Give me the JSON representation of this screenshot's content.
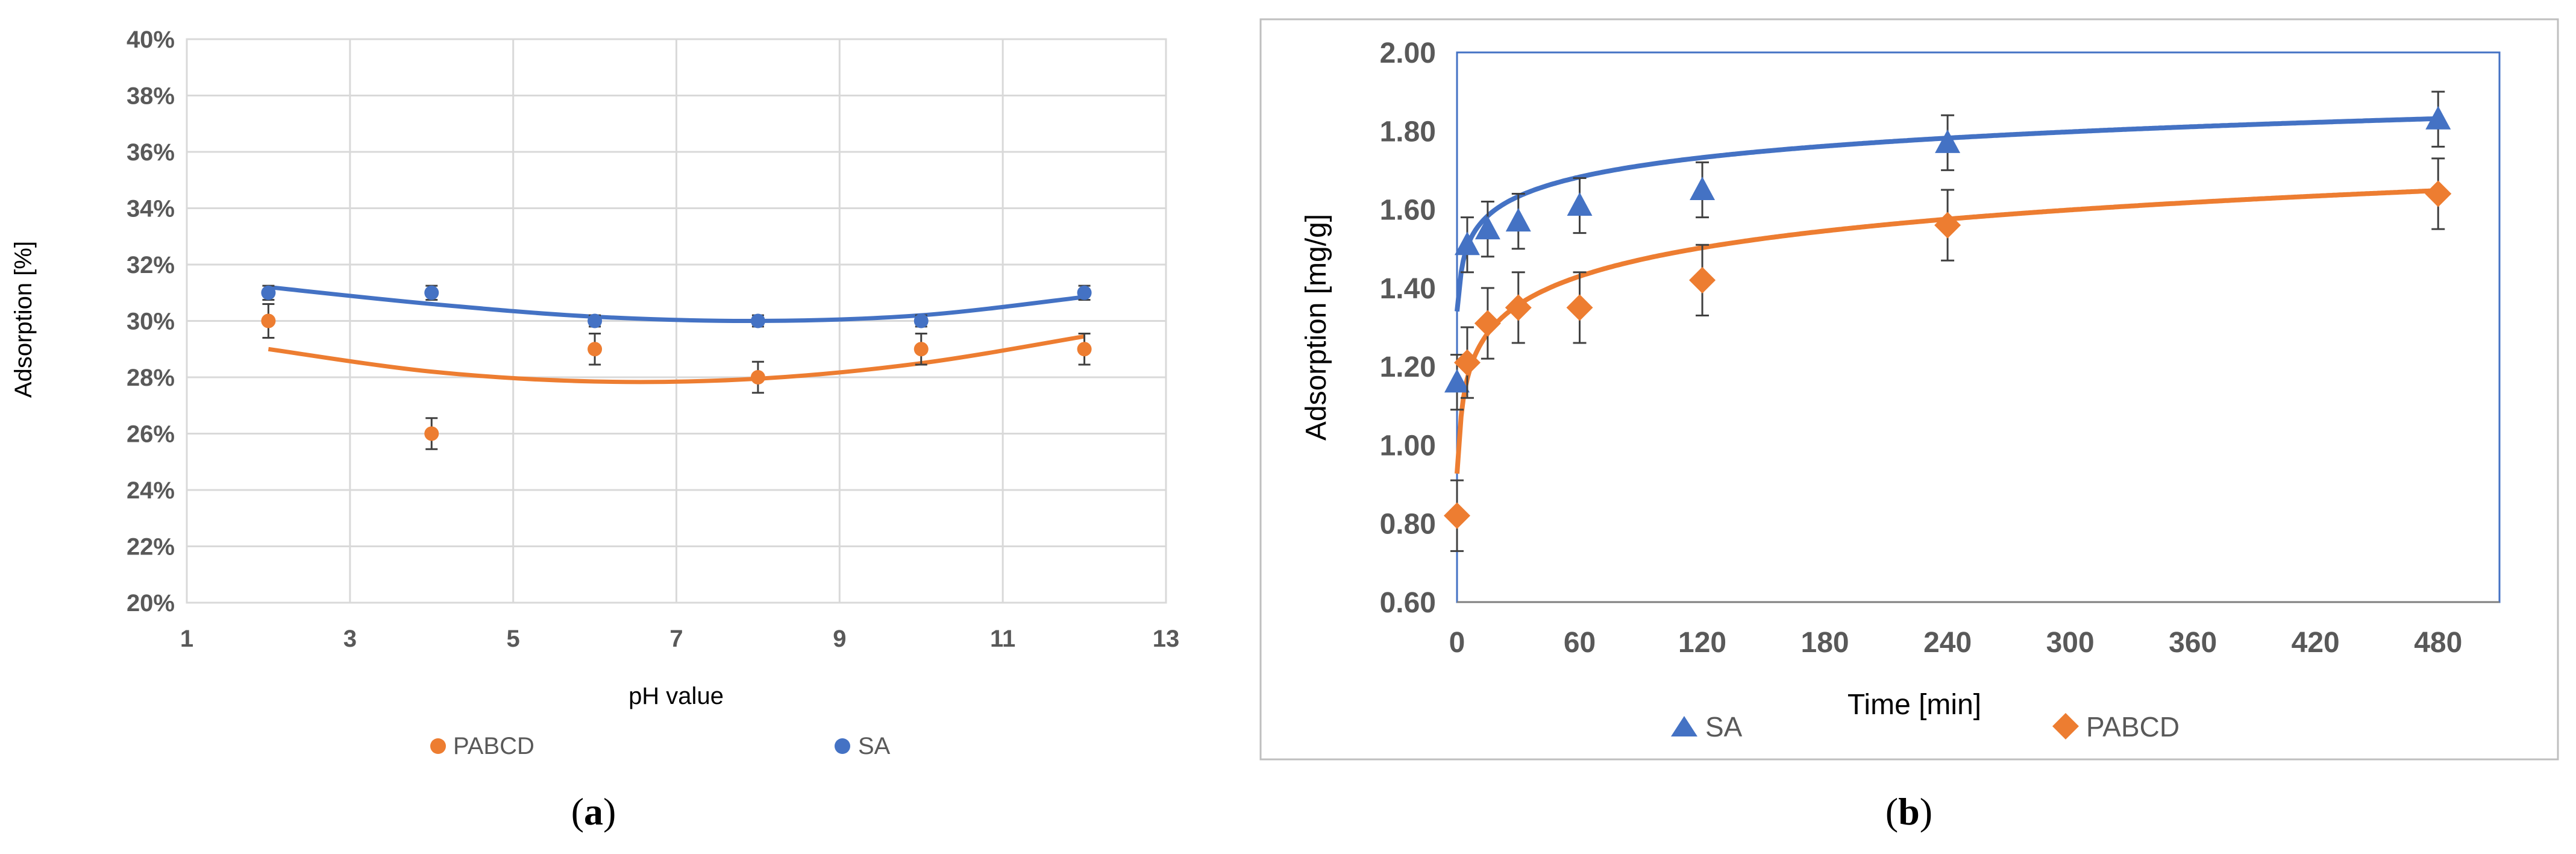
{
  "chart_data": [
    {
      "type": "scatter",
      "panel_label": "(a)",
      "panel_letter": "a",
      "xlabel": "pH value",
      "ylabel": "Adsorption [%]",
      "xlim": [
        1,
        13
      ],
      "ylim": [
        20,
        40
      ],
      "x_ticks": [
        1,
        3,
        5,
        7,
        9,
        11,
        13
      ],
      "y_ticks": [
        20,
        22,
        24,
        26,
        28,
        30,
        32,
        34,
        36,
        38,
        40
      ],
      "y_tick_labels": [
        "20%",
        "22%",
        "24%",
        "26%",
        "28%",
        "30%",
        "32%",
        "34%",
        "36%",
        "38%",
        "40%"
      ],
      "grid": true,
      "legend_position": "bottom",
      "series": [
        {
          "name": "PABCD",
          "color": "#ED7D31",
          "marker": "circle",
          "x": [
            2,
            4,
            6,
            8,
            10,
            12
          ],
          "y": [
            30,
            26,
            29,
            28,
            29,
            29
          ],
          "error": [
            0.6,
            0.55,
            0.55,
            0.55,
            0.55,
            0.55
          ],
          "trend": "polynomial-2",
          "trend_y": [
            29.0,
            28.2,
            27.85,
            27.95,
            28.5,
            29.45
          ]
        },
        {
          "name": "SA",
          "color": "#4472C4",
          "marker": "circle",
          "x": [
            2,
            4,
            6,
            8,
            10,
            12
          ],
          "y": [
            31,
            31,
            30,
            30,
            30,
            31
          ],
          "error": [
            0.25,
            0.25,
            0.2,
            0.2,
            0.2,
            0.25
          ],
          "trend": "polynomial-2",
          "trend_y": [
            31.2,
            30.6,
            30.15,
            30.0,
            30.2,
            30.85
          ]
        }
      ]
    },
    {
      "type": "scatter",
      "panel_label": "(b)",
      "panel_letter": "b",
      "xlabel": "Time [min]",
      "ylabel": "Adsorption [mg/g]",
      "xlim": [
        0,
        510
      ],
      "ylim": [
        0.6,
        2.0
      ],
      "x_ticks": [
        0,
        60,
        120,
        180,
        240,
        300,
        360,
        420,
        480
      ],
      "y_ticks": [
        0.6,
        0.8,
        1.0,
        1.2,
        1.4,
        1.6,
        1.8,
        2.0
      ],
      "y_tick_labels": [
        "0.60",
        "0.80",
        "1.00",
        "1.20",
        "1.40",
        "1.60",
        "1.80",
        "2.00"
      ],
      "grid": false,
      "legend_position": "bottom",
      "series": [
        {
          "name": "SA",
          "color": "#4472C4",
          "marker": "triangle",
          "x": [
            0,
            5,
            15,
            30,
            60,
            120,
            240,
            480
          ],
          "y": [
            1.16,
            1.51,
            1.55,
            1.57,
            1.61,
            1.65,
            1.77,
            1.83
          ],
          "error": [
            0.07,
            0.07,
            0.07,
            0.07,
            0.07,
            0.07,
            0.07,
            0.07
          ],
          "trend": "logarithmic",
          "trend_a": 1.39,
          "trend_b": 0.0715
        },
        {
          "name": "PABCD",
          "color": "#ED7D31",
          "marker": "diamond",
          "x": [
            0,
            5,
            15,
            30,
            60,
            120,
            240,
            480
          ],
          "y": [
            0.82,
            1.21,
            1.31,
            1.35,
            1.35,
            1.42,
            1.56,
            1.64
          ],
          "error": [
            0.09,
            0.09,
            0.09,
            0.09,
            0.09,
            0.09,
            0.09,
            0.09
          ],
          "trend": "logarithmic",
          "trend_a": 1.0,
          "trend_b": 0.105
        }
      ]
    }
  ]
}
